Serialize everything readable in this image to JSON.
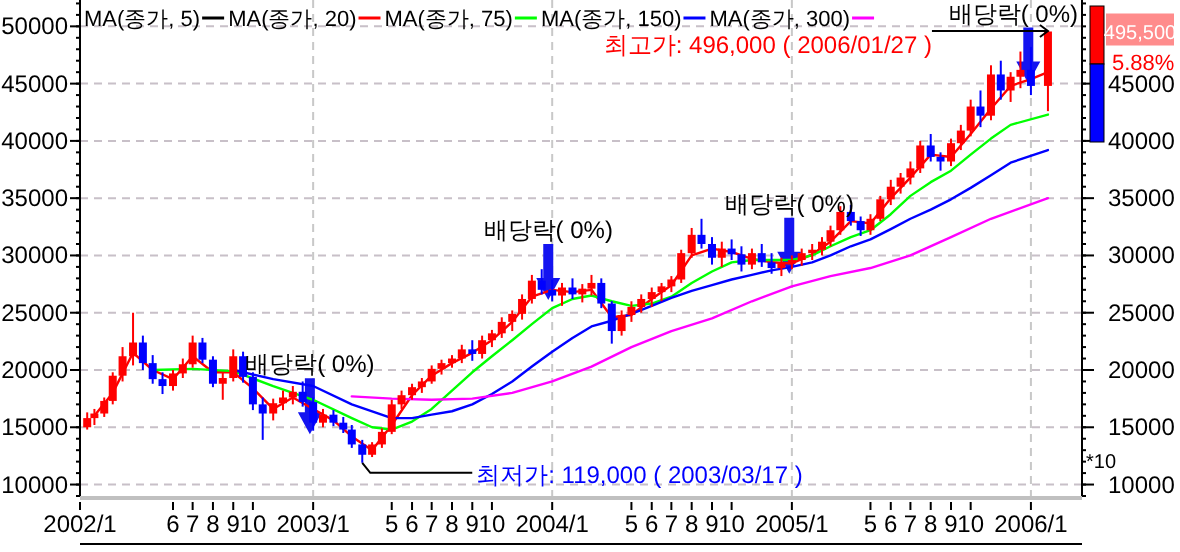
{
  "chart_data": {
    "type": "candlestick",
    "xlim": [
      "2002-01-10",
      "2006-03-20"
    ],
    "ylim": [
      9000,
      52300
    ],
    "y2lim": [
      9000,
      52300
    ],
    "xticks": [
      {
        "value": "2002-01-10",
        "label": "2002/1"
      },
      {
        "value": "2002-06-01",
        "label": "6"
      },
      {
        "value": "2002-07-01",
        "label": "7"
      },
      {
        "value": "2002-08-01",
        "label": "8"
      },
      {
        "value": "2002-09-01",
        "label": "9"
      },
      {
        "value": "2002-10-01",
        "label": "10"
      },
      {
        "value": "2003-01-01",
        "label": "2003/1"
      },
      {
        "value": "2003-05-01",
        "label": "5"
      },
      {
        "value": "2003-06-01",
        "label": "6"
      },
      {
        "value": "2003-07-01",
        "label": "7"
      },
      {
        "value": "2003-08-01",
        "label": "8"
      },
      {
        "value": "2003-09-01",
        "label": "9"
      },
      {
        "value": "2003-10-01",
        "label": "10"
      },
      {
        "value": "2004-01-01",
        "label": "2004/1"
      },
      {
        "value": "2004-05-01",
        "label": "5"
      },
      {
        "value": "2004-06-01",
        "label": "6"
      },
      {
        "value": "2004-07-01",
        "label": "7"
      },
      {
        "value": "2004-08-01",
        "label": "8"
      },
      {
        "value": "2004-09-01",
        "label": "9"
      },
      {
        "value": "2004-10-01",
        "label": "10"
      },
      {
        "value": "2005-01-01",
        "label": "2005/1"
      },
      {
        "value": "2005-05-01",
        "label": "5"
      },
      {
        "value": "2005-06-01",
        "label": "6"
      },
      {
        "value": "2005-07-01",
        "label": "7"
      },
      {
        "value": "2005-08-01",
        "label": "8"
      },
      {
        "value": "2005-09-01",
        "label": "9"
      },
      {
        "value": "2005-10-01",
        "label": "10"
      },
      {
        "value": "2006-01-01",
        "label": "2006/1"
      }
    ],
    "yticks": [
      10000,
      15000,
      20000,
      25000,
      30000,
      35000,
      40000,
      45000,
      50000
    ],
    "y2ticks": [
      10000,
      15000,
      20000,
      25000,
      30000,
      35000,
      40000,
      45000
    ],
    "grid": true,
    "legend": "top left",
    "marker": "none",
    "line_style": "solid",
    "x": [
      "2002-01-21",
      "2002-02-01",
      "2002-02-16",
      "2002-03-01",
      "2002-03-16",
      "2002-04-01",
      "2002-04-16",
      "2002-05-01",
      "2002-05-16",
      "2002-06-01",
      "2002-06-16",
      "2002-07-01",
      "2002-07-16",
      "2002-08-01",
      "2002-08-16",
      "2002-09-01",
      "2002-09-16",
      "2002-10-01",
      "2002-10-16",
      "2002-11-01",
      "2002-11-16",
      "2002-12-01",
      "2002-12-16",
      "2003-01-01",
      "2003-01-16",
      "2003-02-01",
      "2003-02-16",
      "2003-03-01",
      "2003-03-17",
      "2003-04-01",
      "2003-04-16",
      "2003-05-01",
      "2003-05-16",
      "2003-06-01",
      "2003-06-16",
      "2003-07-01",
      "2003-07-16",
      "2003-08-01",
      "2003-08-16",
      "2003-09-01",
      "2003-09-16",
      "2003-10-01",
      "2003-10-16",
      "2003-11-01",
      "2003-11-16",
      "2003-12-01",
      "2003-12-16",
      "2004-01-01",
      "2004-01-16",
      "2004-02-01",
      "2004-02-16",
      "2004-03-01",
      "2004-03-16",
      "2004-04-01",
      "2004-04-16",
      "2004-05-01",
      "2004-05-16",
      "2004-06-01",
      "2004-06-16",
      "2004-07-01",
      "2004-07-16",
      "2004-08-01",
      "2004-08-16",
      "2004-09-01",
      "2004-09-16",
      "2004-10-01",
      "2004-10-16",
      "2004-11-01",
      "2004-11-16",
      "2004-12-01",
      "2004-12-16",
      "2005-01-01",
      "2005-01-16",
      "2005-02-01",
      "2005-02-16",
      "2005-03-01",
      "2005-03-16",
      "2005-04-01",
      "2005-04-16",
      "2005-05-01",
      "2005-05-16",
      "2005-06-01",
      "2005-06-16",
      "2005-07-01",
      "2005-07-16",
      "2005-08-01",
      "2005-08-16",
      "2005-09-01",
      "2005-09-16",
      "2005-10-01",
      "2005-10-16",
      "2005-11-01",
      "2005-11-16",
      "2005-12-01",
      "2005-12-16",
      "2006-01-01",
      "2006-01-27"
    ],
    "ohlc": [
      [
        15000,
        16300,
        14800,
        15800
      ],
      [
        15800,
        16600,
        15200,
        16200
      ],
      [
        16200,
        17600,
        15900,
        17300
      ],
      [
        17300,
        19800,
        17000,
        19500
      ],
      [
        19500,
        22000,
        19000,
        21200
      ],
      [
        21200,
        25000,
        20400,
        22400
      ],
      [
        22400,
        23000,
        20000,
        20600
      ],
      [
        20600,
        21300,
        18800,
        19200
      ],
      [
        19200,
        19800,
        17900,
        18600
      ],
      [
        18600,
        20000,
        18200,
        19700
      ],
      [
        19700,
        21000,
        19300,
        20500
      ],
      [
        20500,
        23000,
        20200,
        22400
      ],
      [
        22400,
        22800,
        20600,
        20900
      ],
      [
        20900,
        21200,
        18500,
        18800
      ],
      [
        18800,
        19800,
        17400,
        19300
      ],
      [
        19300,
        21800,
        19000,
        21200
      ],
      [
        21200,
        21600,
        18900,
        19400
      ],
      [
        19400,
        19800,
        16500,
        17000
      ],
      [
        17000,
        17600,
        13900,
        16200
      ],
      [
        16200,
        17500,
        15600,
        17100
      ],
      [
        17100,
        18200,
        16500,
        17600
      ],
      [
        17600,
        18600,
        17000,
        18100
      ],
      [
        18100,
        19000,
        16800,
        17200
      ],
      [
        17200,
        17600,
        14700,
        15400
      ],
      [
        15400,
        16600,
        15000,
        16100
      ],
      [
        16100,
        16500,
        15100,
        15400
      ],
      [
        15400,
        15900,
        14500,
        14800
      ],
      [
        14800,
        15200,
        13200,
        13500
      ],
      [
        13500,
        13900,
        11900,
        12600
      ],
      [
        12600,
        13700,
        12400,
        13500
      ],
      [
        13500,
        14900,
        13200,
        14600
      ],
      [
        14600,
        17400,
        14400,
        17000
      ],
      [
        17000,
        18200,
        16600,
        17800
      ],
      [
        17800,
        18800,
        17400,
        18500
      ],
      [
        18500,
        19300,
        18000,
        19000
      ],
      [
        19000,
        20400,
        18800,
        20100
      ],
      [
        20100,
        20900,
        19600,
        20600
      ],
      [
        20600,
        21300,
        20200,
        21000
      ],
      [
        21000,
        22200,
        20600,
        21800
      ],
      [
        21800,
        22600,
        20800,
        21400
      ],
      [
        21400,
        23000,
        21000,
        22600
      ],
      [
        22600,
        23500,
        22000,
        23200
      ],
      [
        23200,
        24600,
        22800,
        24200
      ],
      [
        24200,
        25200,
        23400,
        24900
      ],
      [
        24900,
        26600,
        24400,
        26200
      ],
      [
        26200,
        28300,
        25800,
        27800
      ],
      [
        27800,
        28800,
        26600,
        27000
      ],
      [
        27000,
        27900,
        26000,
        26500
      ],
      [
        26500,
        27600,
        25600,
        27200
      ],
      [
        27200,
        28000,
        26200,
        26600
      ],
      [
        26600,
        27500,
        25900,
        27100
      ],
      [
        27100,
        28300,
        26500,
        27600
      ],
      [
        27600,
        28000,
        25400,
        25800
      ],
      [
        25800,
        26000,
        22300,
        23400
      ],
      [
        23400,
        25200,
        23000,
        24800
      ],
      [
        24800,
        26000,
        24200,
        25500
      ],
      [
        25500,
        26600,
        25000,
        26200
      ],
      [
        26200,
        27200,
        25500,
        26800
      ],
      [
        26800,
        27600,
        26000,
        27300
      ],
      [
        27300,
        28200,
        26800,
        27900
      ],
      [
        27900,
        30500,
        27600,
        30200
      ],
      [
        30200,
        32400,
        29800,
        31800
      ],
      [
        31800,
        33200,
        30600,
        31000
      ],
      [
        31000,
        31600,
        29200,
        29800
      ],
      [
        29800,
        31200,
        29000,
        30600
      ],
      [
        30600,
        31400,
        29600,
        30100
      ],
      [
        30100,
        30800,
        28600,
        29200
      ],
      [
        29200,
        30600,
        28800,
        30200
      ],
      [
        30200,
        31000,
        29000,
        29400
      ],
      [
        29400,
        30200,
        28400,
        28900
      ],
      [
        28900,
        29800,
        28200,
        29300
      ],
      [
        29300,
        30000,
        28800,
        29600
      ],
      [
        29600,
        30600,
        29100,
        30200
      ],
      [
        30200,
        31000,
        29600,
        30500
      ],
      [
        30500,
        31600,
        30000,
        31200
      ],
      [
        31200,
        32600,
        30800,
        32200
      ],
      [
        32200,
        34300,
        31800,
        33800
      ],
      [
        33800,
        34400,
        32600,
        33000
      ],
      [
        33000,
        33400,
        31700,
        32200
      ],
      [
        32200,
        33600,
        31800,
        33200
      ],
      [
        33200,
        35200,
        33000,
        34900
      ],
      [
        34900,
        36600,
        34400,
        36000
      ],
      [
        36000,
        37200,
        35400,
        36800
      ],
      [
        36800,
        38200,
        36200,
        37600
      ],
      [
        37600,
        40000,
        37200,
        39600
      ],
      [
        39600,
        40600,
        38200,
        38600
      ],
      [
        38600,
        39000,
        37400,
        38200
      ],
      [
        38200,
        40200,
        37800,
        39800
      ],
      [
        39800,
        41400,
        39200,
        40900
      ],
      [
        40900,
        43600,
        40400,
        43000
      ],
      [
        43000,
        44400,
        41200,
        42200
      ],
      [
        42200,
        46600,
        41800,
        45800
      ],
      [
        45800,
        47000,
        43600,
        44400
      ],
      [
        44400,
        46000,
        43400,
        45600
      ],
      [
        45600,
        47800,
        44600,
        46200
      ],
      [
        46200,
        48200,
        44000,
        44800
      ],
      [
        44800,
        49600,
        42600,
        49550
      ]
    ],
    "series": [
      {
        "name": "MA(종가, 5)",
        "type": "line",
        "color": "#000000",
        "values": [
          null,
          null,
          null,
          null,
          null,
          null,
          null,
          null,
          null,
          null,
          null,
          null,
          null,
          null,
          null,
          null,
          null,
          null,
          null,
          null,
          null,
          null,
          null,
          null,
          null,
          null,
          null,
          null,
          null,
          null,
          null,
          null,
          null,
          null,
          null,
          null,
          null,
          null,
          null,
          null,
          null,
          null,
          null,
          null,
          null,
          null,
          null,
          null,
          null,
          null,
          null,
          null,
          null,
          null,
          null,
          null,
          null,
          null,
          null,
          null,
          null,
          null,
          null,
          null,
          null,
          null,
          null,
          null,
          null,
          null,
          null,
          null,
          null,
          null,
          null,
          null,
          null,
          null,
          null,
          null,
          null,
          null,
          null,
          null,
          null,
          null,
          null,
          null,
          null,
          null,
          null,
          null,
          null,
          null,
          null,
          null,
          null
        ]
      },
      {
        "name": "MA(종가, 20)",
        "type": "line",
        "color": "#ff0000",
        "x": [
          "2002-02",
          "2002-03",
          "2002-04",
          "2002-05",
          "2002-06",
          "2002-07",
          "2002-08",
          "2002-09",
          "2002-10",
          "2002-11",
          "2002-12",
          "2003-01",
          "2003-02",
          "2003-03",
          "2003-04",
          "2003-05",
          "2003-06",
          "2003-07",
          "2003-08",
          "2003-09",
          "2003-10",
          "2003-11",
          "2003-12",
          "2004-01",
          "2004-02",
          "2004-03",
          "2004-04",
          "2004-05",
          "2004-06",
          "2004-07",
          "2004-08",
          "2004-09",
          "2004-10",
          "2004-11",
          "2004-12",
          "2005-01",
          "2005-02",
          "2005-03",
          "2005-04",
          "2005-05",
          "2005-06",
          "2005-07",
          "2005-08",
          "2005-09",
          "2005-10",
          "2005-11",
          "2005-12",
          "2006-01",
          "2006-01-27"
        ],
        "values": [
          16000,
          18000,
          21500,
          20000,
          19200,
          21200,
          19800,
          19800,
          18400,
          16600,
          17600,
          16600,
          15600,
          14200,
          13000,
          15200,
          17800,
          19500,
          20600,
          21500,
          22600,
          24200,
          26400,
          27000,
          26800,
          27000,
          24600,
          24800,
          26200,
          27400,
          30000,
          30600,
          30300,
          29700,
          29400,
          29300,
          30100,
          31200,
          33000,
          32800,
          35000,
          36800,
          38800,
          38600,
          40600,
          42800,
          44800,
          45400,
          46000
        ]
      },
      {
        "name": "MA(종가, 75)",
        "type": "line",
        "color": "#00ff00",
        "x": [
          "2002-05",
          "2002-07",
          "2002-09",
          "2002-11",
          "2003-01",
          "2003-03",
          "2003-04",
          "2003-05",
          "2003-06",
          "2003-07",
          "2003-08",
          "2003-09",
          "2003-10",
          "2003-11",
          "2003-12",
          "2004-01",
          "2004-02",
          "2004-03",
          "2004-04",
          "2004-05",
          "2004-06",
          "2004-07",
          "2004-08",
          "2004-09",
          "2004-10",
          "2004-11",
          "2004-12",
          "2005-01",
          "2005-02",
          "2005-03",
          "2005-04",
          "2005-05",
          "2005-06",
          "2005-07",
          "2005-08",
          "2005-09",
          "2005-10",
          "2005-11",
          "2005-12",
          "2006-01-27"
        ],
        "values": [
          20000,
          20100,
          19900,
          18600,
          17400,
          15800,
          15000,
          14800,
          15500,
          16600,
          18200,
          19800,
          21200,
          22600,
          24000,
          25400,
          26200,
          26500,
          26000,
          25600,
          25800,
          26400,
          27600,
          28600,
          29400,
          29600,
          29600,
          29600,
          30000,
          30800,
          31600,
          32200,
          33600,
          35200,
          36400,
          37400,
          38800,
          40200,
          41400,
          42300
        ]
      },
      {
        "name": "MA(종가, 150)",
        "type": "line",
        "color": "#0000ff",
        "x": [
          "2002-09",
          "2002-11",
          "2003-01",
          "2003-03",
          "2003-05",
          "2003-06",
          "2003-07",
          "2003-08",
          "2003-09",
          "2003-10",
          "2003-11",
          "2003-12",
          "2004-01",
          "2004-02",
          "2004-03",
          "2004-04",
          "2004-05",
          "2004-06",
          "2004-07",
          "2004-08",
          "2004-09",
          "2004-10",
          "2004-11",
          "2004-12",
          "2005-01",
          "2005-02",
          "2005-03",
          "2005-04",
          "2005-05",
          "2005-06",
          "2005-07",
          "2005-08",
          "2005-09",
          "2005-10",
          "2005-11",
          "2005-12",
          "2006-01-27"
        ],
        "values": [
          20000,
          19200,
          18600,
          17000,
          15800,
          15800,
          16100,
          16400,
          17000,
          17900,
          19000,
          20300,
          21600,
          22800,
          23800,
          24300,
          24900,
          25600,
          26300,
          26900,
          27400,
          27900,
          28300,
          28700,
          29000,
          29400,
          30000,
          30800,
          31400,
          32300,
          33200,
          34000,
          34900,
          35900,
          37000,
          38100,
          39200
        ]
      },
      {
        "name": "MA(종가, 300)",
        "type": "line",
        "color": "#ff00ff",
        "x": [
          "2003-03",
          "2003-05",
          "2003-07",
          "2003-09",
          "2003-11",
          "2004-01",
          "2004-03",
          "2004-05",
          "2004-07",
          "2004-09",
          "2004-11",
          "2005-01",
          "2005-03",
          "2005-05",
          "2005-07",
          "2005-09",
          "2005-11",
          "2006-01-27"
        ],
        "values": [
          17700,
          17500,
          17400,
          17500,
          18000,
          19000,
          20300,
          22000,
          23400,
          24500,
          26000,
          27300,
          28200,
          28900,
          30000,
          31600,
          33200,
          35000
        ]
      }
    ],
    "annotations": [
      {
        "text": "배당락( 0%)",
        "x": "2002-12-27",
        "y": 14400
      },
      {
        "text": "배당락( 0%)",
        "x": "2003-12-26",
        "y": 26100
      },
      {
        "text": "배당락( 0%)",
        "x": "2004-12-28",
        "y": 28400
      },
      {
        "text": "배당락( 0%)",
        "x": "2005-12-28",
        "y": 45000
      },
      {
        "text": "최고가: 496,000 ( 2006/01/27 )",
        "x": "2006-01-27",
        "y": 49600
      },
      {
        "text": "최저가: 119,000 ( 2003/03/17 )",
        "x": "2003-03-17",
        "y": 11900
      },
      "495,500",
      "5.88%",
      "*10"
    ]
  }
}
